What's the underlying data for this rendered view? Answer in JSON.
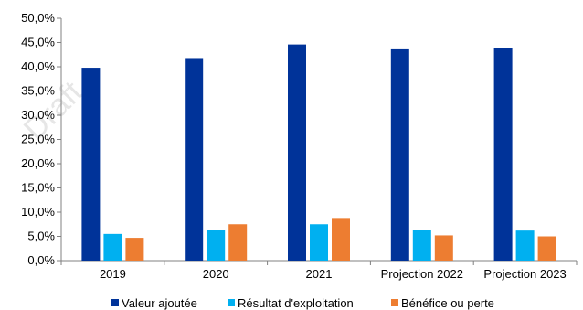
{
  "watermark": "Draft",
  "chart_data": {
    "type": "bar",
    "title": "",
    "xlabel": "",
    "ylabel": "",
    "categories": [
      "2019",
      "2020",
      "2021",
      "Projection 2022",
      "Projection 2023"
    ],
    "series": [
      {
        "name": "Valeur ajoutée",
        "color": "#003399",
        "values": [
          39.8,
          41.8,
          44.6,
          43.6,
          43.9
        ]
      },
      {
        "name": "Résultat d'exploitation",
        "color": "#00b0f0",
        "values": [
          5.5,
          6.4,
          7.5,
          6.4,
          6.2
        ]
      },
      {
        "name": "Bénéfice ou perte",
        "color": "#ed7d31",
        "values": [
          4.7,
          7.5,
          8.8,
          5.2,
          5.0
        ]
      }
    ],
    "ylim": [
      0,
      50
    ],
    "yticks": [
      "0,0%",
      "5,0%",
      "10,0%",
      "15,0%",
      "20,0%",
      "25,0%",
      "30,0%",
      "35,0%",
      "40,0%",
      "45,0%",
      "50,0%"
    ],
    "grid": false,
    "legend_position": "bottom"
  }
}
